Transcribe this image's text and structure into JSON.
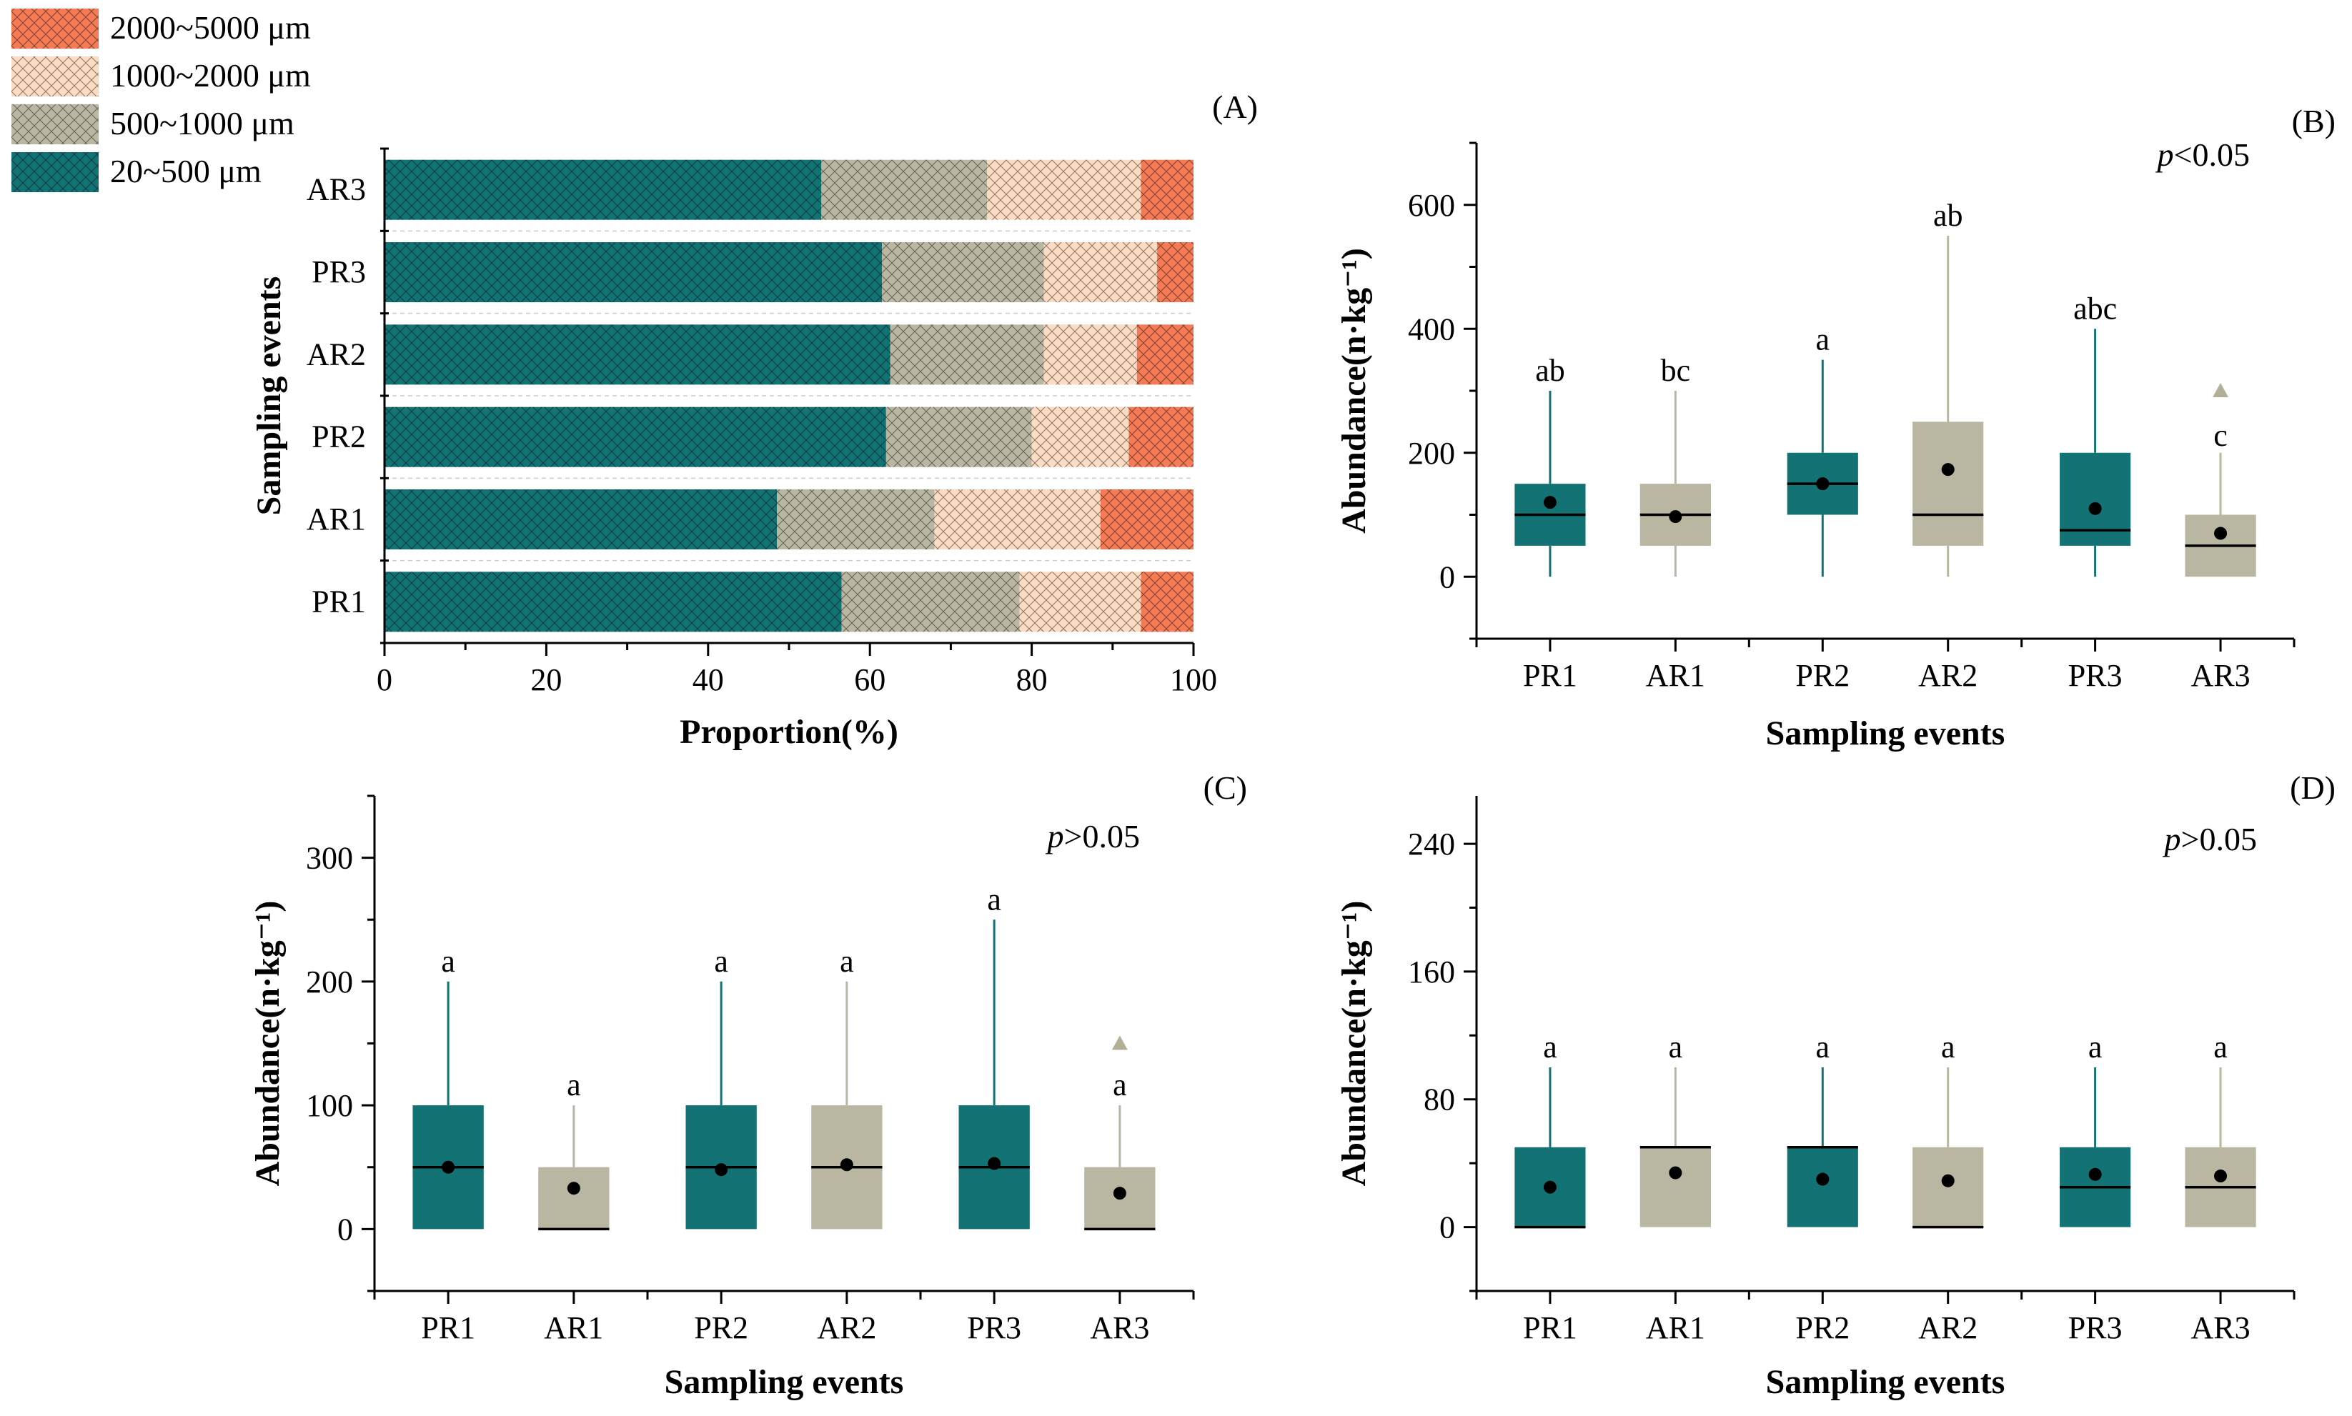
{
  "colors": {
    "teal": "#137273",
    "khaki": "#b9b6a2",
    "peach": "#fbdcc2",
    "orange": "#f47b55",
    "outlier": "#b3ae97",
    "axis": "#000000"
  },
  "chart_data": [
    {
      "id": "A",
      "panel_label": "(A)",
      "type": "bar",
      "orientation": "horizontal",
      "stacked": true,
      "categories": [
        "PR1",
        "AR1",
        "PR2",
        "AR2",
        "PR3",
        "AR3"
      ],
      "series": [
        {
          "name": "20~500 μm",
          "values": [
            56.5,
            48.5,
            62.0,
            62.5,
            61.5,
            54.0
          ]
        },
        {
          "name": "500~1000 μm",
          "values": [
            22.0,
            19.5,
            18.0,
            19.0,
            20.0,
            20.5
          ]
        },
        {
          "name": "1000~2000 μm",
          "values": [
            15.0,
            20.5,
            12.0,
            11.5,
            14.0,
            19.0
          ]
        },
        {
          "name": "2000~5000 μm",
          "values": [
            6.5,
            11.5,
            8.0,
            7.0,
            4.5,
            6.5
          ]
        }
      ],
      "title": "",
      "xlabel": "Proportion(%)",
      "ylabel": "Sampling events",
      "xlim": [
        0,
        100
      ],
      "xticks": [
        "0",
        "20",
        "40",
        "60",
        "80",
        "100"
      ],
      "legend_position": "top-left",
      "legend": [
        "2000~5000 μm",
        "1000~2000 μm",
        "500~1000 μm",
        "20~500 μm"
      ]
    },
    {
      "id": "B",
      "panel_label": "(B)",
      "type": "box",
      "annotation": {
        "p": "p",
        "rest": "<0.05"
      },
      "xlabel": "Sampling events",
      "ylabel": "Abundance(n·kg⁻¹)",
      "ylim": [
        -100,
        700
      ],
      "yticks": [
        "0",
        "200",
        "400",
        "600"
      ],
      "ytick_values": [
        0,
        200,
        400,
        600
      ],
      "minor_step": 100,
      "categories": [
        "PR1",
        "AR1",
        "PR2",
        "AR2",
        "PR3",
        "AR3"
      ],
      "boxes": [
        {
          "name": "PR1",
          "group": "PR",
          "min": 0,
          "q1": 50,
          "median": 100,
          "q3": 150,
          "max": 300,
          "mean": 120,
          "letter": "ab"
        },
        {
          "name": "AR1",
          "group": "AR",
          "min": 0,
          "q1": 50,
          "median": 100,
          "q3": 150,
          "max": 300,
          "mean": 97,
          "letter": "bc"
        },
        {
          "name": "PR2",
          "group": "PR",
          "min": 0,
          "q1": 100,
          "median": 150,
          "q3": 200,
          "max": 350,
          "mean": 150,
          "letter": "a"
        },
        {
          "name": "AR2",
          "group": "AR",
          "min": 0,
          "q1": 50,
          "median": 100,
          "q3": 250,
          "max": 550,
          "mean": 173,
          "letter": "ab"
        },
        {
          "name": "PR3",
          "group": "PR",
          "min": 0,
          "q1": 50,
          "median": 75,
          "q3": 200,
          "max": 400,
          "mean": 110,
          "letter": "abc"
        },
        {
          "name": "AR3",
          "group": "AR",
          "min": 0,
          "q1": 0,
          "median": 50,
          "q3": 100,
          "max": 200,
          "mean": 70,
          "outlier": 300,
          "letter": "c"
        }
      ]
    },
    {
      "id": "C",
      "panel_label": "(C)",
      "type": "box",
      "annotation": {
        "p": "p",
        "rest": ">0.05"
      },
      "xlabel": "Sampling events",
      "ylabel": "Abundance(n·kg⁻¹)",
      "ylim": [
        -50,
        350
      ],
      "yticks": [
        "0",
        "100",
        "200",
        "300"
      ],
      "ytick_values": [
        0,
        100,
        200,
        300
      ],
      "minor_step": 50,
      "categories": [
        "PR1",
        "AR1",
        "PR2",
        "AR2",
        "PR3",
        "AR3"
      ],
      "boxes": [
        {
          "name": "PR1",
          "group": "PR",
          "min": 0,
          "q1": 0,
          "median": 50,
          "q3": 100,
          "max": 200,
          "mean": 50,
          "letter": "a"
        },
        {
          "name": "AR1",
          "group": "AR",
          "min": 0,
          "q1": 0,
          "median": 0,
          "q3": 50,
          "max": 100,
          "mean": 33,
          "letter": "a"
        },
        {
          "name": "PR2",
          "group": "PR",
          "min": 0,
          "q1": 0,
          "median": 50,
          "q3": 100,
          "max": 200,
          "mean": 48,
          "letter": "a"
        },
        {
          "name": "AR2",
          "group": "AR",
          "min": 0,
          "q1": 0,
          "median": 50,
          "q3": 100,
          "max": 200,
          "mean": 52,
          "letter": "a"
        },
        {
          "name": "PR3",
          "group": "PR",
          "min": 0,
          "q1": 0,
          "median": 50,
          "q3": 100,
          "max": 250,
          "mean": 53,
          "letter": "a"
        },
        {
          "name": "AR3",
          "group": "AR",
          "min": 0,
          "q1": 0,
          "median": 0,
          "q3": 50,
          "max": 100,
          "mean": 29,
          "outlier": 150,
          "letter": "a"
        }
      ]
    },
    {
      "id": "D",
      "panel_label": "(D)",
      "type": "box",
      "annotation": {
        "p": "p",
        "rest": ">0.05"
      },
      "xlabel": "Sampling events",
      "ylabel": "Abundance(n·kg⁻¹)",
      "ylim": [
        -40,
        270
      ],
      "yticks": [
        "0",
        "80",
        "160",
        "240"
      ],
      "ytick_values": [
        0,
        80,
        160,
        240
      ],
      "minor_step": 40,
      "categories": [
        "PR1",
        "AR1",
        "PR2",
        "AR2",
        "PR3",
        "AR3"
      ],
      "boxes": [
        {
          "name": "PR1",
          "group": "PR",
          "min": 0,
          "q1": 0,
          "median": 0,
          "q3": 50,
          "max": 100,
          "mean": 25,
          "letter": "a"
        },
        {
          "name": "AR1",
          "group": "AR",
          "min": 0,
          "q1": 0,
          "median": 50,
          "q3": 50,
          "max": 100,
          "mean": 34,
          "letter": "a"
        },
        {
          "name": "PR2",
          "group": "PR",
          "min": 0,
          "q1": 0,
          "median": 50,
          "q3": 50,
          "max": 100,
          "mean": 30,
          "letter": "a"
        },
        {
          "name": "AR2",
          "group": "AR",
          "min": 0,
          "q1": 0,
          "median": 0,
          "q3": 50,
          "max": 100,
          "mean": 29,
          "letter": "a"
        },
        {
          "name": "PR3",
          "group": "PR",
          "min": 0,
          "q1": 0,
          "median": 25,
          "q3": 50,
          "max": 100,
          "mean": 33,
          "letter": "a"
        },
        {
          "name": "AR3",
          "group": "AR",
          "min": 0,
          "q1": 0,
          "median": 25,
          "q3": 50,
          "max": 100,
          "mean": 32,
          "letter": "a"
        }
      ]
    }
  ]
}
